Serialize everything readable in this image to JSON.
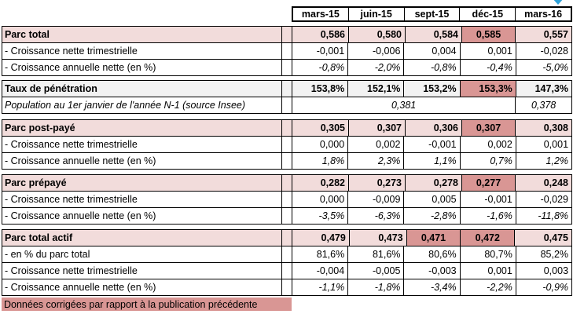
{
  "columns": [
    "mars-15",
    "juin-15",
    "sept-15",
    "déc-15",
    "mars-16"
  ],
  "colors": {
    "row_light_pink": "#F2DCDB",
    "corrected_highlight_pink": "#D99694",
    "row_light_gray": "#F2F2F2",
    "arrow_blue": "#2FA2D9",
    "border": "#000000"
  },
  "icons": {
    "top_right": "blue-down-arrow"
  },
  "sections": [
    {
      "name": "parc-total",
      "rows": [
        {
          "label": "Parc total",
          "values": [
            "0,586",
            "0,580",
            "0,584",
            "0,585",
            "0,557"
          ],
          "corrected_column": "déc-15"
        },
        {
          "label": "- Croissance nette trimestrielle",
          "values": [
            "-0,001",
            "-0,006",
            "0,004",
            "0,001",
            "-0,028"
          ]
        },
        {
          "label": "- Croissance annuelle nette (en %)",
          "values": [
            "-0,8%",
            "-2,0%",
            "-0,8%",
            "-0,4%",
            "-5,0%"
          ]
        }
      ]
    },
    {
      "name": "taux-de-penetration",
      "rows": [
        {
          "label": "Taux de pénétration",
          "values": [
            "153,8%",
            "152,1%",
            "153,2%",
            "153,3%",
            "147,3%"
          ],
          "corrected_column": "déc-15"
        },
        {
          "label": "Population au 1er janvier de l'année N-1 (source Insee)",
          "merged_value": "0,381",
          "last_value": "0,378"
        }
      ]
    },
    {
      "name": "parc-post-paye",
      "rows": [
        {
          "label": "Parc post-payé",
          "values": [
            "0,305",
            "0,307",
            "0,306",
            "0,307",
            "0,308"
          ],
          "corrected_column": "déc-15"
        },
        {
          "label": "- Croissance nette trimestrielle",
          "values": [
            "0,000",
            "0,002",
            "-0,001",
            "0,002",
            "0,001"
          ]
        },
        {
          "label": "- Croissance annuelle nette (en %)",
          "values": [
            "1,8%",
            "2,3%",
            "1,1%",
            "0,7%",
            "1,2%"
          ]
        }
      ]
    },
    {
      "name": "parc-prepaye",
      "rows": [
        {
          "label": "Parc prépayé",
          "values": [
            "0,282",
            "0,273",
            "0,278",
            "0,277",
            "0,248"
          ],
          "corrected_column": "déc-15"
        },
        {
          "label": "- Croissance nette trimestrielle",
          "values": [
            "0,000",
            "-0,009",
            "0,005",
            "-0,001",
            "-0,029"
          ]
        },
        {
          "label": "- Croissance annuelle nette (en %)",
          "values": [
            "-3,5%",
            "-6,3%",
            "-2,8%",
            "-1,6%",
            "-11,8%"
          ]
        }
      ]
    },
    {
      "name": "parc-total-actif",
      "rows": [
        {
          "label": "Parc total actif",
          "values": [
            "0,479",
            "0,473",
            "0,471",
            "0,472",
            "0,475"
          ],
          "corrected_column": "sept-15, déc-15"
        },
        {
          "label": "- en % du parc total",
          "values": [
            "81,6%",
            "81,6%",
            "80,6%",
            "80,7%",
            "85,2%"
          ]
        },
        {
          "label": "- Croissance nette trimestrielle",
          "values": [
            "-0,004",
            "-0,005",
            "-0,003",
            "0,001",
            "0,003"
          ]
        },
        {
          "label": "- Croissance annuelle nette (en %)",
          "values": [
            "-1,1%",
            "-1,8%",
            "-3,4%",
            "-2,2%",
            "-0,9%"
          ]
        }
      ]
    }
  ],
  "footer": {
    "text": "Données corrigées par rapport à la publication précédente"
  }
}
